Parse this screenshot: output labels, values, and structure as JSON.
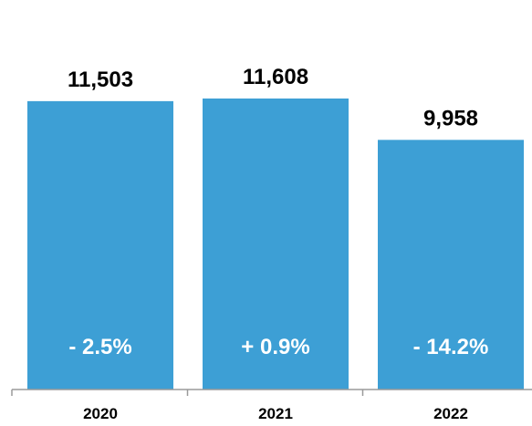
{
  "chart_data": {
    "type": "bar",
    "categories": [
      "2020",
      "2021",
      "2022"
    ],
    "values": [
      11503,
      11608,
      9958
    ],
    "value_labels": [
      "11,503",
      "11,608",
      "9,958"
    ],
    "change_labels": [
      "- 2.5%",
      "+ 0.9%",
      "- 14.2%"
    ],
    "title": "",
    "xlabel": "",
    "ylabel": "",
    "ylim": [
      0,
      11608
    ],
    "grid": false,
    "legend": "none",
    "bar_color": "#3D9FD5",
    "axis_color": "#9A9A9A"
  }
}
